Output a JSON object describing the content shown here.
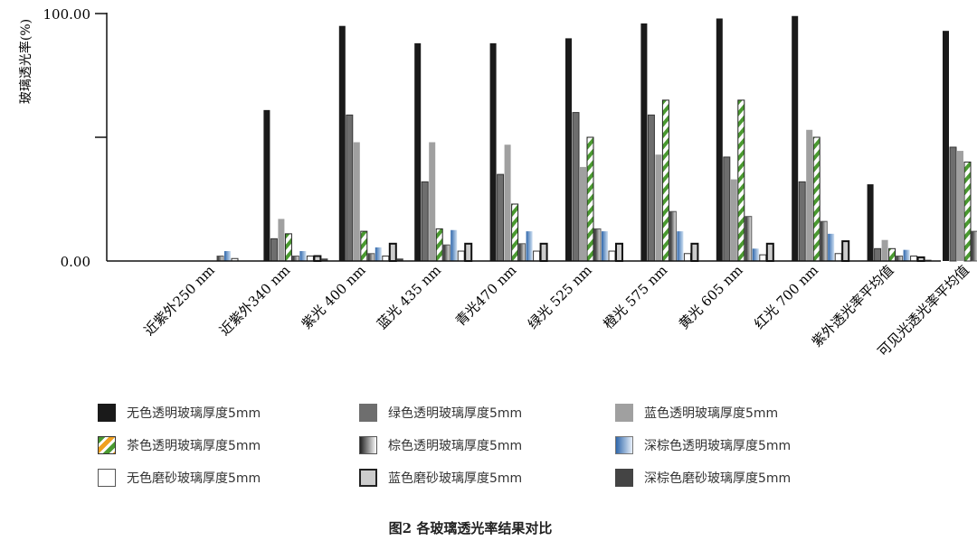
{
  "chart_data": {
    "type": "bar",
    "ylabel": "玻璃透光率(%)",
    "ylim": [
      0,
      100
    ],
    "yticks": [
      "0.00",
      "100.00"
    ],
    "categories": [
      "近紫外250 nm",
      "近紫外340 nm",
      "紫光 400 nm",
      "蓝光 435 nm",
      "青光470 nm",
      "绿光 525 nm",
      "橙光 575 nm",
      "黄光 605 nm",
      "红光 700 nm",
      "紫外透光率平均值",
      "可见光透光率平均值"
    ],
    "series": [
      {
        "name": "无色透明玻璃厚度5mm",
        "color": "#1a1a1a",
        "values": [
          0,
          61,
          95,
          88,
          88,
          90,
          96,
          98,
          99,
          31,
          93
        ]
      },
      {
        "name": "绿色透明玻璃厚度5mm",
        "color": "#6e6e6e",
        "values": [
          0,
          9,
          59,
          32,
          35,
          60,
          59,
          42,
          32,
          5,
          46
        ]
      },
      {
        "name": "蓝色透明玻璃厚度5mm",
        "color": "#a0a0a0",
        "values": [
          0,
          17,
          48,
          48,
          47,
          38,
          43,
          33,
          53,
          8.5,
          44.5
        ]
      },
      {
        "name": "茶色透明玻璃厚度5mm",
        "color": "#4a9a30",
        "values": [
          0,
          11,
          12,
          13,
          23,
          50,
          65,
          65,
          50,
          5,
          40
        ]
      },
      {
        "name": "棕色透明玻璃厚度5mm",
        "color": "#888888",
        "values": [
          2,
          2,
          3,
          6.5,
          7,
          13,
          20,
          18,
          16,
          2,
          12
        ]
      },
      {
        "name": "深棕色透明玻璃厚度5mm",
        "color": "#5b8fc8",
        "values": [
          4,
          4,
          5.5,
          12.5,
          12,
          12,
          12,
          5,
          11,
          4.5,
          10
        ]
      },
      {
        "name": "无色磨砂玻璃厚度5mm",
        "color": "#ffffff",
        "values": [
          1,
          2,
          2,
          4,
          4,
          4,
          3,
          2.5,
          3,
          2,
          3
        ]
      },
      {
        "name": "蓝色磨砂玻璃厚度5mm",
        "color": "#cccccc",
        "values": [
          0,
          2,
          7,
          7,
          7,
          7,
          7,
          7,
          8,
          1.5,
          7
        ]
      },
      {
        "name": "深棕色磨砂玻璃厚度5mm",
        "color": "#444444",
        "values": [
          0,
          1,
          1,
          0,
          0,
          0,
          0,
          0,
          0,
          0.5,
          1
        ]
      }
    ],
    "grid": false,
    "legend": "bottom"
  },
  "caption": "图2   各玻璃透光率结果对比"
}
